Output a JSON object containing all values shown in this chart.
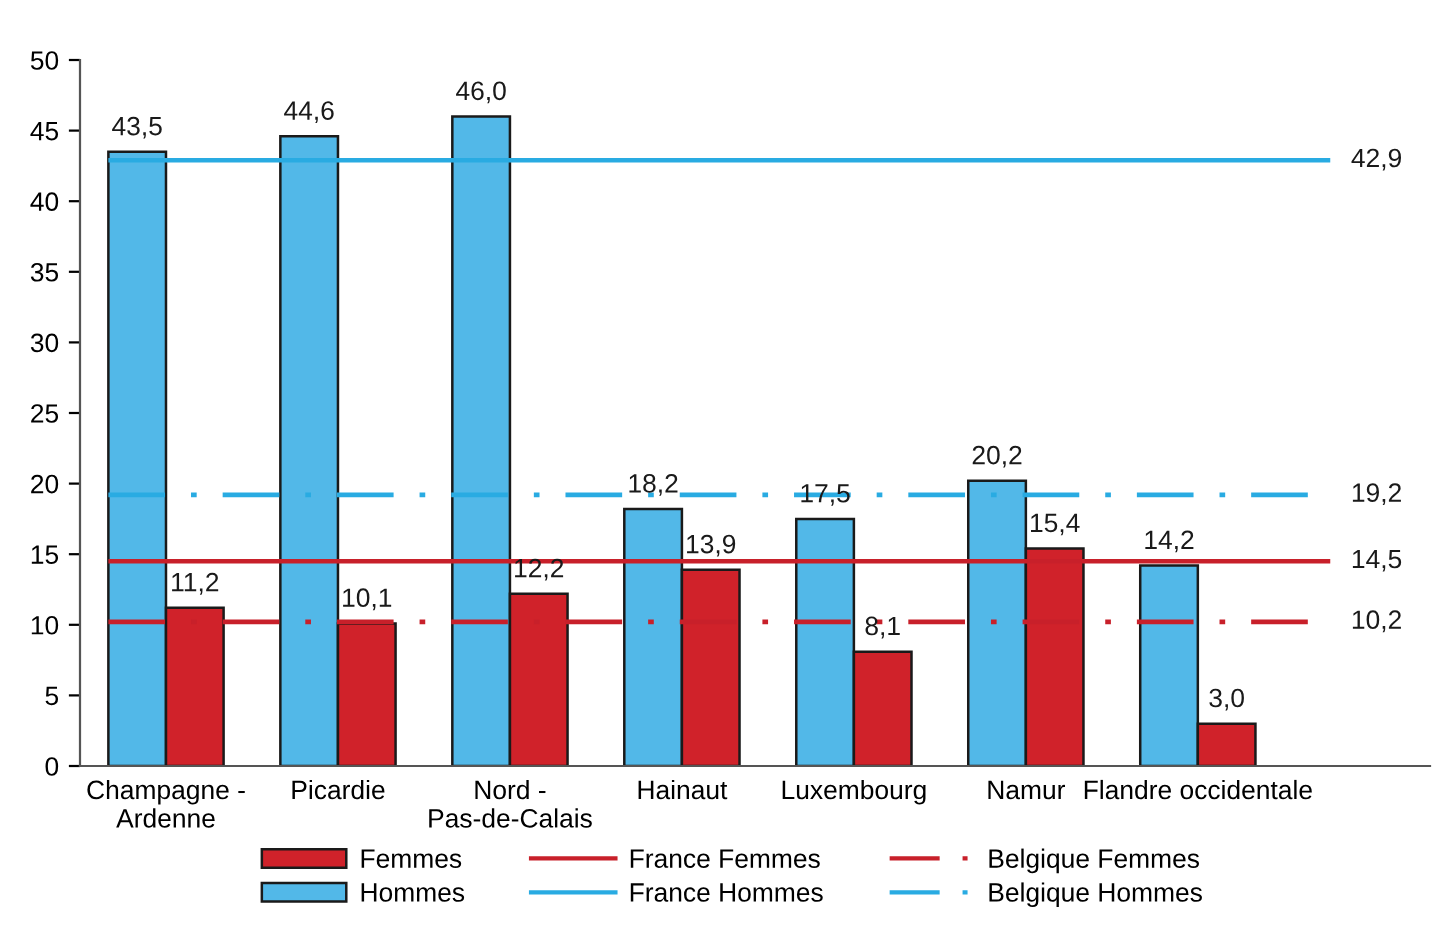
{
  "chart_data": {
    "type": "bar",
    "categories": [
      "Champagne -\nArdenne",
      "Picardie",
      "Nord -\nPas-de-Calais",
      "Hainaut",
      "Luxembourg",
      "Namur",
      "Flandre occidentale"
    ],
    "series": [
      {
        "name": "Hommes",
        "color": "#52b8e8",
        "values": [
          43.5,
          44.6,
          46.0,
          18.2,
          17.5,
          20.2,
          14.2
        ],
        "value_labels": [
          "43,5",
          "44,6",
          "46,0",
          "18,2",
          "17,5",
          "20,2",
          "14,2"
        ]
      },
      {
        "name": "Femmes",
        "color": "#d0222a",
        "values": [
          11.2,
          10.1,
          12.2,
          13.9,
          8.1,
          15.4,
          3.0
        ],
        "value_labels": [
          "11,2",
          "10,1",
          "12,2",
          "13,9",
          "8,1",
          "15,4",
          "3,0"
        ]
      }
    ],
    "ylim": [
      0,
      50
    ],
    "yticks": [
      0,
      5,
      10,
      15,
      20,
      25,
      30,
      35,
      40,
      45,
      50
    ],
    "grid": false,
    "legend": "bottom",
    "ref_lines": [
      {
        "axis": "y",
        "value": 14.5,
        "label": "France Femmes",
        "color": "#c8202a",
        "line_style": "solid"
      },
      {
        "axis": "y",
        "value": 42.9,
        "label": "France Hommes",
        "color": "#29abe2",
        "line_style": "solid"
      },
      {
        "axis": "y",
        "value": 10.2,
        "label": "Belgique Femmes",
        "color": "#c8202a",
        "line_style": "dashdot"
      },
      {
        "axis": "y",
        "value": 19.2,
        "label": "Belgique Hommes",
        "color": "#29abe2",
        "line_style": "dashdot"
      }
    ],
    "annotations": [
      "14,5",
      "42,9",
      "10,2",
      "19,2"
    ]
  }
}
